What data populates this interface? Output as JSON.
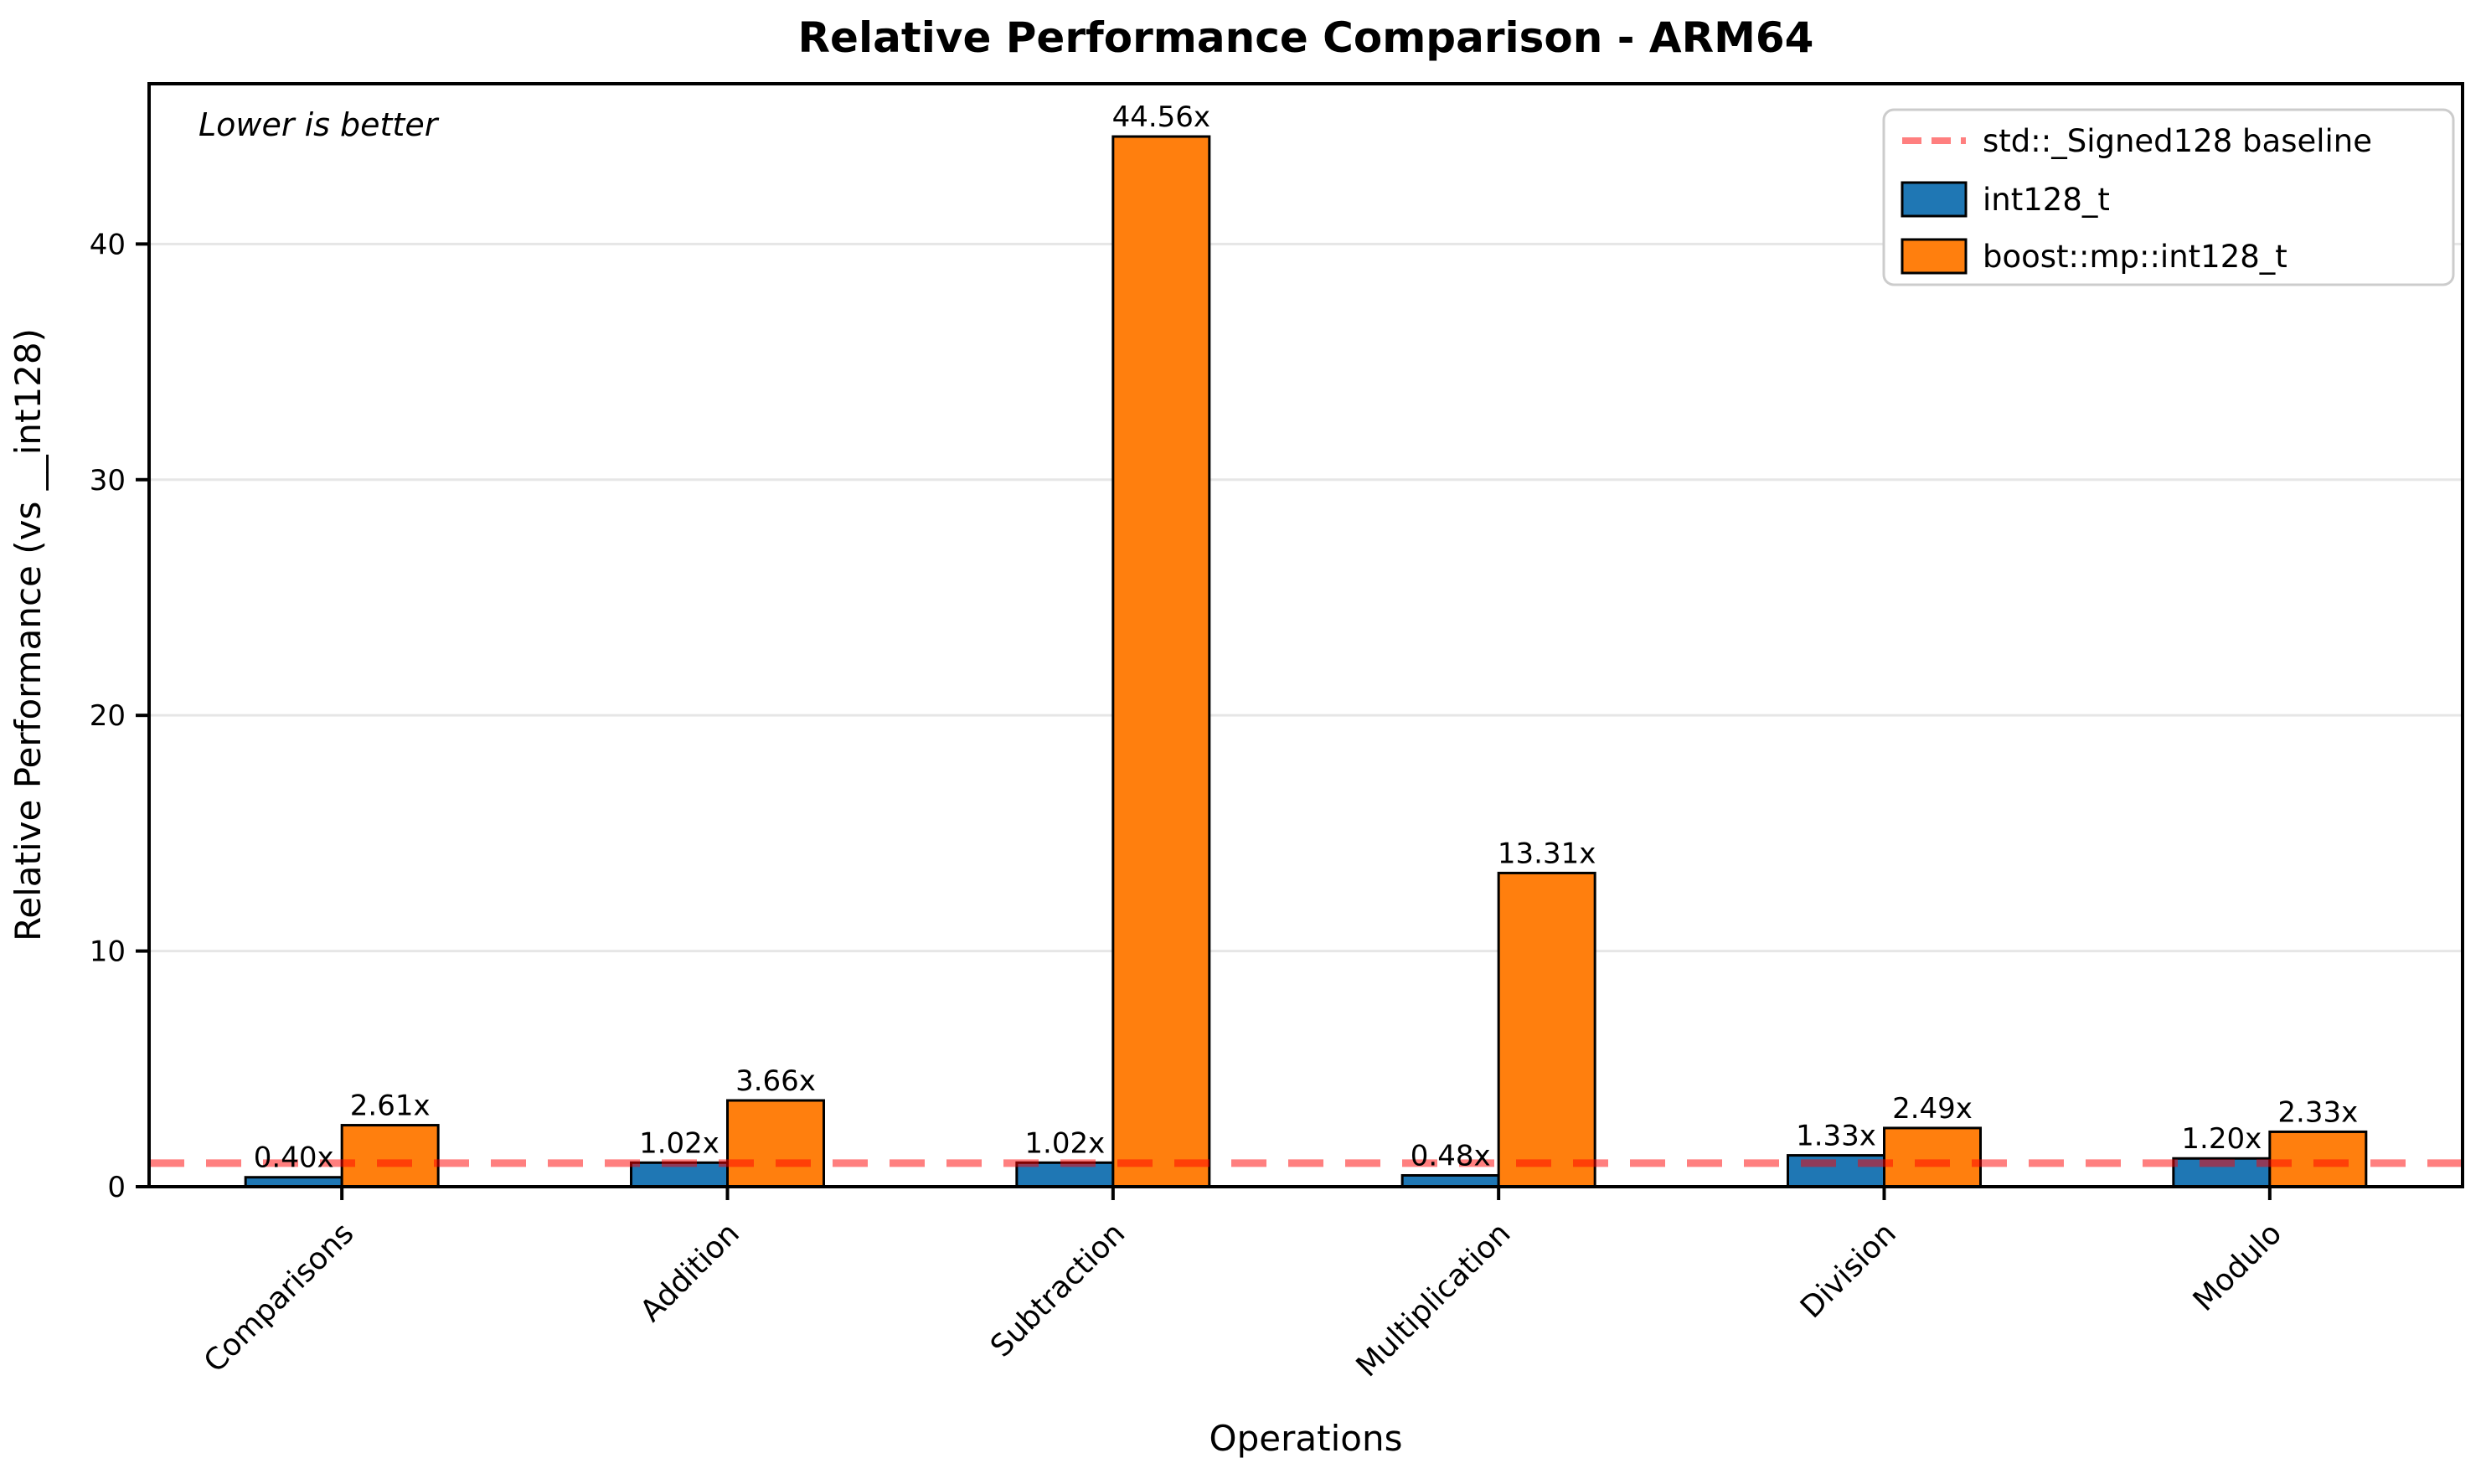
{
  "chart_data": {
    "type": "bar",
    "title": "Relative Performance Comparison - ARM64",
    "xlabel": "Operations",
    "ylabel": "Relative Performance (vs __int128)",
    "annotation": "Lower is better",
    "categories": [
      "Comparisons",
      "Addition",
      "Subtraction",
      "Multiplication",
      "Division",
      "Modulo"
    ],
    "series": [
      {
        "name": "int128_t",
        "color": "#1f77b4",
        "values": [
          0.4,
          1.02,
          1.02,
          0.48,
          1.33,
          1.2
        ],
        "labels": [
          "0.40x",
          "1.02x",
          "1.02x",
          "0.48x",
          "1.33x",
          "1.20x"
        ]
      },
      {
        "name": "boost::mp::int128_t",
        "color": "#ff7f0e",
        "values": [
          2.61,
          3.66,
          44.56,
          13.31,
          2.49,
          2.33
        ],
        "labels": [
          "2.61x",
          "3.66x",
          "44.56x",
          "13.31x",
          "2.49x",
          "2.33x"
        ]
      }
    ],
    "baseline": {
      "label": "std::_Signed128 baseline",
      "value": 1.0,
      "color": "#ff0000",
      "opacity": 0.5,
      "style": "dashed"
    },
    "yticks": [
      0,
      10,
      20,
      30,
      40
    ],
    "ylim": [
      0,
      46.8
    ],
    "grid": true,
    "grid_color": "#e6e6e6",
    "bar_edge_color": "#000000",
    "legend_position": "upper right",
    "legend_border_color": "#cccccc"
  }
}
